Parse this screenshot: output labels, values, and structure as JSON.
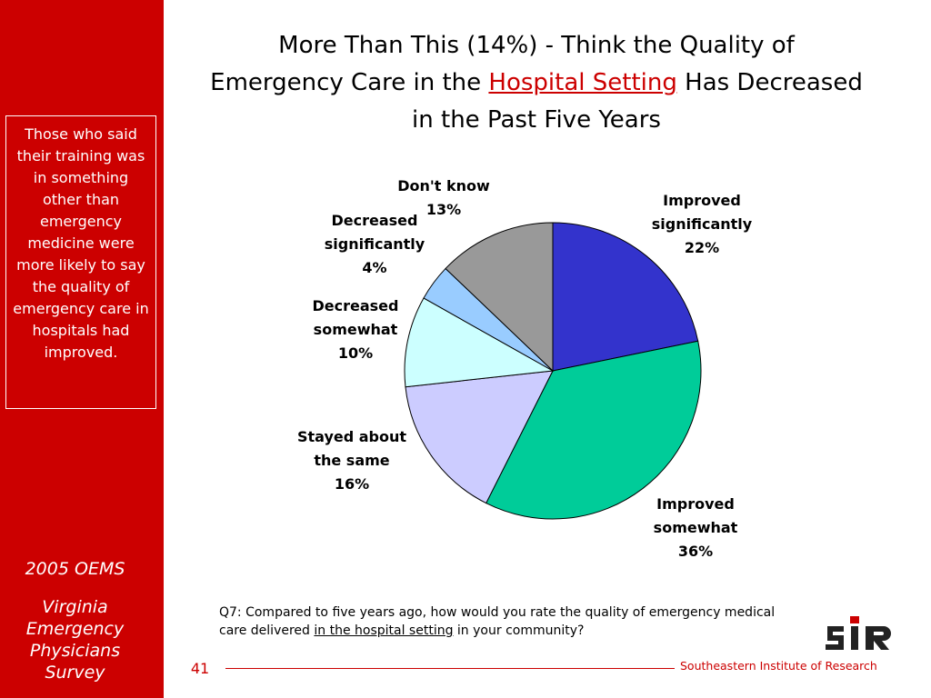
{
  "sidebar": {
    "callout": "Those who said their training was in something other than emergency medicine were more likely to say the quality of emergency care in hospitals had improved.",
    "oems": "2005 OEMS",
    "survey_lines": [
      "Virginia",
      "Emergency",
      "Physicians",
      "Survey"
    ]
  },
  "title": {
    "part1": "More Than This (14%) - Think the Quality of Emergency Care in the",
    "highlight": "Hospital Setting",
    "part2": "Has Decreased in the Past Five Years"
  },
  "chart_data": {
    "type": "pie",
    "title": "",
    "start": "12 o'clock, clockwise",
    "slices": [
      {
        "label_lines": [
          "Improved",
          "significantly",
          "22%"
        ],
        "value": 22,
        "color": "#3333cc"
      },
      {
        "label_lines": [
          "Improved",
          "somewhat",
          "36%"
        ],
        "value": 36,
        "color": "#00cc99"
      },
      {
        "label_lines": [
          "Stayed about",
          "the same",
          "16%"
        ],
        "value": 16,
        "color": "#ccccff"
      },
      {
        "label_lines": [
          "Decreased",
          "somewhat",
          "10%"
        ],
        "value": 10,
        "color": "#ccffff"
      },
      {
        "label_lines": [
          "Decreased",
          "significantly",
          "4%"
        ],
        "value": 4,
        "color": "#99ccff"
      },
      {
        "label_lines": [
          "Don't know",
          "13%"
        ],
        "value": 13,
        "color": "#999999"
      }
    ]
  },
  "question": {
    "part1": "Q7: Compared to five years ago, how would you rate the quality of emergency medical care delivered",
    "underlined": "in the hospital setting",
    "part2": "in your community?"
  },
  "footer": {
    "page_number": "41",
    "organization": "Southeastern Institute of Research",
    "logo_text": "SIR"
  },
  "colors": {
    "brand_red": "#cc0000"
  }
}
